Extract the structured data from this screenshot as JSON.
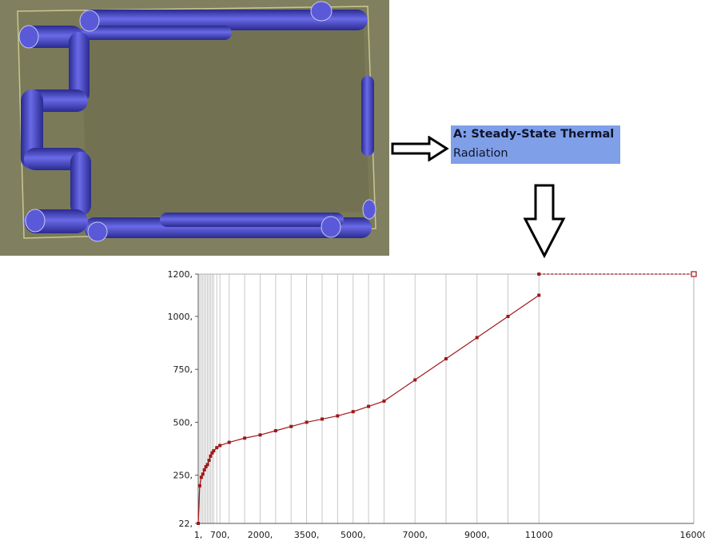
{
  "viewport": {
    "background": "#808060",
    "pipe_color": "#5050d0",
    "plate_outline": "#c8c890"
  },
  "analysis_label": {
    "title": "A: Steady-State Thermal",
    "subtitle": "Radiation",
    "background": "#7f9fe8"
  },
  "arrows": [
    {
      "name": "right-arrow",
      "direction": "right"
    },
    {
      "name": "down-arrow",
      "direction": "down"
    }
  ],
  "chart_data": {
    "type": "line",
    "title": "",
    "xlabel": "",
    "ylabel": "",
    "x": [
      1,
      50,
      100,
      150,
      200,
      250,
      300,
      350,
      400,
      450,
      500,
      600,
      700,
      1000,
      1500,
      2000,
      2500,
      3000,
      3500,
      4000,
      4500,
      5000,
      5500,
      6000,
      7000,
      8000,
      9000,
      10000,
      11000
    ],
    "series": [
      {
        "values": [
          22,
          200,
          240,
          255,
          275,
          290,
          300,
          320,
          340,
          355,
          365,
          380,
          390,
          405,
          425,
          440,
          460,
          480,
          500,
          515,
          530,
          550,
          575,
          600,
          700,
          800,
          900,
          1000,
          1100
        ]
      }
    ],
    "extension": {
      "x": [
        11000,
        16000
      ],
      "y": [
        1200,
        1200
      ],
      "style": "dashed"
    },
    "x_ticks": [
      {
        "v": 1,
        "label": "1,"
      },
      {
        "v": 700,
        "label": "700,"
      },
      {
        "v": 2000,
        "label": "2000,"
      },
      {
        "v": 3500,
        "label": "3500,"
      },
      {
        "v": 5000,
        "label": "5000,"
      },
      {
        "v": 7000,
        "label": "7000,"
      },
      {
        "v": 9000,
        "label": "9000,"
      },
      {
        "v": 11000,
        "label": "11000"
      },
      {
        "v": 16000,
        "label": "16000"
      }
    ],
    "y_ticks": [
      {
        "v": 22,
        "label": "22,"
      },
      {
        "v": 250,
        "label": "250,"
      },
      {
        "v": 500,
        "label": "500,"
      },
      {
        "v": 750,
        "label": "750,"
      },
      {
        "v": 1000,
        "label": "1000,"
      },
      {
        "v": 1200,
        "label": "1200,"
      }
    ],
    "xlim": [
      1,
      16000
    ],
    "ylim": [
      22,
      1200
    ],
    "grid": "vertical",
    "line_color": "#a01818",
    "grid_color": "#c8c8c8"
  }
}
